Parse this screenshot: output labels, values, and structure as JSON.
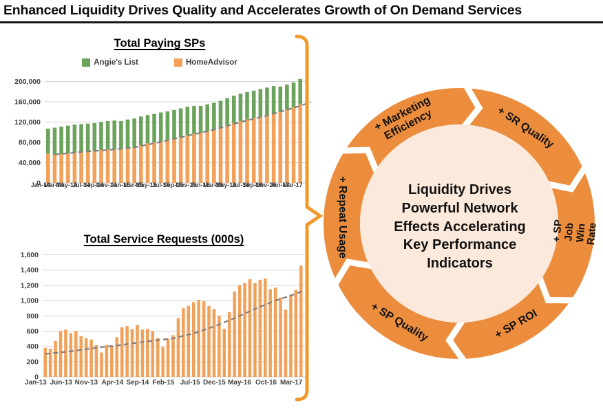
{
  "slide": {
    "title": "Enhanced Liquidity Drives Quality and Accelerates Growth of On Demand Services"
  },
  "colors": {
    "angies_list_green": "#6CA35C",
    "homeadvisor_orange": "#F1A159",
    "ring_orange": "#EC8D3E",
    "ring_center_fill": "#FBE9DB",
    "brace_orange": "#F2992E",
    "trendline_gray": "#7F7F7F",
    "gridline_gray": "#D2D2D2",
    "axis_text_gray": "#3F3F3F"
  },
  "chart_data": [
    {
      "type": "bar",
      "stacked": true,
      "title": "Total Paying SPs",
      "legend": [
        {
          "label": "Angie's List",
          "color": "#6CA35C"
        },
        {
          "label": "HomeAdvisor",
          "color": "#F1A159"
        }
      ],
      "legend_position": "top",
      "grid": true,
      "ylim": [
        0,
        200000
      ],
      "ytick_step": 40000,
      "ytick_labels": [
        "0",
        "40,000",
        "80,000",
        "120,000",
        "160,000",
        "200,000"
      ],
      "categories": [
        "Jan-14",
        "Feb-14",
        "Mar-14",
        "Apr-14",
        "May-14",
        "Jun-14",
        "Jul-14",
        "Aug-14",
        "Sep-14",
        "Oct-14",
        "Nov-14",
        "Dec-14",
        "Jan-15",
        "Feb-15",
        "Mar-15",
        "Apr-15",
        "May-15",
        "Jun-15",
        "Jul-15",
        "Aug-15",
        "Sep-15",
        "Oct-15",
        "Nov-15",
        "Dec-15",
        "Jan-16",
        "Feb-16",
        "Mar-16",
        "Apr-16",
        "May-16",
        "Jun-16",
        "Jul-16",
        "Aug-16",
        "Sep-16",
        "Oct-16",
        "Nov-16",
        "Dec-16",
        "Jan-17",
        "Feb-17",
        "Mar-17"
      ],
      "xtick_interval": 2,
      "xtick_labels": [
        "Jan-14",
        "Mar-14",
        "May-14",
        "Jul-14",
        "Sep-14",
        "Nov-14",
        "Jan-15",
        "Mar-15",
        "May-15",
        "Jul-15",
        "Sep-15",
        "Nov-15",
        "Jan-16",
        "Mar-16",
        "May-16",
        "Jul-16",
        "Sep-16",
        "Nov-16",
        "Jan-17",
        "Mar-17"
      ],
      "series": [
        {
          "name": "HomeAdvisor",
          "color": "#F1A159",
          "values": [
            58000,
            56000,
            57000,
            58000,
            60000,
            61000,
            62000,
            63000,
            65000,
            66000,
            66000,
            67000,
            68000,
            70000,
            74000,
            78000,
            80000,
            82000,
            85000,
            88000,
            91000,
            94000,
            97000,
            99000,
            102000,
            106000,
            110000,
            114000,
            118000,
            122000,
            125000,
            128000,
            131000,
            134000,
            137000,
            140000,
            144000,
            149000,
            155000
          ]
        },
        {
          "name": "Angie's List",
          "color": "#6CA35C",
          "values": [
            49000,
            53000,
            54000,
            55000,
            55000,
            55000,
            55000,
            55000,
            55000,
            56000,
            57000,
            55000,
            57000,
            57000,
            57000,
            56000,
            56000,
            57000,
            56000,
            56000,
            56000,
            56000,
            55000,
            53000,
            53000,
            52000,
            52000,
            53000,
            54000,
            54000,
            54000,
            54000,
            54000,
            54000,
            54000,
            50000,
            50000,
            49000,
            50000
          ]
        }
      ],
      "trendline": {
        "style": "dashed",
        "color": "#7F7F7F",
        "points": [
          [
            1,
            56000
          ],
          [
            5,
            61000
          ],
          [
            9,
            65000
          ],
          [
            13,
            70000
          ],
          [
            17,
            81000
          ],
          [
            21,
            93000
          ],
          [
            25,
            105000
          ],
          [
            29,
            120000
          ],
          [
            33,
            133000
          ],
          [
            37,
            148000
          ],
          [
            39.6,
            159000
          ]
        ]
      }
    },
    {
      "type": "bar",
      "stacked": false,
      "title": "Total Service Requests (000s)",
      "legend": [],
      "grid": true,
      "ylim": [
        0,
        1600
      ],
      "ytick_step": 200,
      "ytick_labels": [
        "0",
        "200",
        "400",
        "600",
        "800",
        "1,000",
        "1,200",
        "1,400",
        "1,600"
      ],
      "categories": [
        "Jan-13",
        "Feb-13",
        "Mar-13",
        "Apr-13",
        "May-13",
        "Jun-13",
        "Jul-13",
        "Aug-13",
        "Sep-13",
        "Oct-13",
        "Nov-13",
        "Dec-13",
        "Jan-14",
        "Feb-14",
        "Mar-14",
        "Apr-14",
        "May-14",
        "Jun-14",
        "Jul-14",
        "Aug-14",
        "Sep-14",
        "Oct-14",
        "Nov-14",
        "Dec-14",
        "Jan-15",
        "Feb-15",
        "Mar-15",
        "Apr-15",
        "May-15",
        "Jun-15",
        "Jul-15",
        "Aug-15",
        "Sep-15",
        "Oct-15",
        "Nov-15",
        "Dec-15",
        "Jan-16",
        "Feb-16",
        "Mar-16",
        "Apr-16",
        "May-16",
        "Jun-16",
        "Jul-16",
        "Aug-16",
        "Sep-16",
        "Oct-16",
        "Nov-16",
        "Dec-16",
        "Jan-17",
        "Feb-17",
        "Mar-17"
      ],
      "xtick_interval": 5,
      "xtick_labels": [
        "Jan-13",
        "Jun-13",
        "Nov-13",
        "Apr-14",
        "Sep-14",
        "Feb-15",
        "Jul-15",
        "Dec-15",
        "May-16",
        "Oct-16",
        "Mar-17"
      ],
      "series": [
        {
          "name": "Total Service Requests (000s)",
          "color": "#F1A159",
          "values": [
            380,
            370,
            470,
            600,
            620,
            575,
            600,
            535,
            505,
            490,
            415,
            320,
            420,
            400,
            520,
            650,
            665,
            625,
            680,
            620,
            630,
            600,
            510,
            390,
            500,
            545,
            770,
            900,
            930,
            980,
            1010,
            990,
            930,
            890,
            800,
            630,
            850,
            1120,
            1200,
            1230,
            1280,
            1230,
            1270,
            1290,
            1150,
            1170,
            1040,
            880,
            1080,
            1140,
            1460
          ]
        }
      ],
      "trendline": {
        "style": "dashed",
        "color": "#7F7F7F",
        "points": [
          [
            0,
            300
          ],
          [
            5,
            335
          ],
          [
            10,
            380
          ],
          [
            15,
            420
          ],
          [
            20,
            465
          ],
          [
            25,
            505
          ],
          [
            29,
            570
          ],
          [
            33,
            660
          ],
          [
            37,
            770
          ],
          [
            41,
            890
          ],
          [
            45,
            1000
          ],
          [
            48,
            1065
          ],
          [
            50.6,
            1130
          ]
        ]
      }
    }
  ],
  "ring": {
    "segments": [
      {
        "label": "+ Marketing\nEfficiency"
      },
      {
        "label": "+ SR Quality"
      },
      {
        "label": "+ SP Job\nWin Rate"
      },
      {
        "label": "+ SP ROI"
      },
      {
        "label": "+ SP Quality"
      },
      {
        "label": "+ Repeat Usage"
      }
    ],
    "center_text": "Liquidity Drives\nPowerful Network\nEffects Accelerating\nKey Performance\nIndicators"
  }
}
